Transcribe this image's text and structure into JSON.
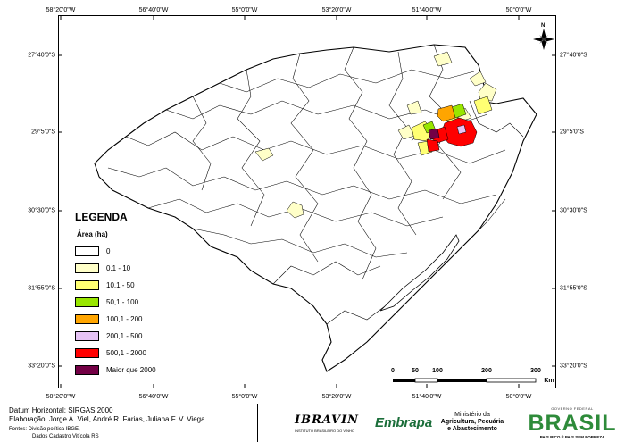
{
  "coordinates": {
    "top": [
      "58°20'0\"W",
      "56°40'0\"W",
      "55°0'0\"W",
      "53°20'0\"W",
      "51°40'0\"W",
      "50°0'0\"W"
    ],
    "bottom": [
      "58°20'0\"W",
      "56°40'0\"W",
      "55°0'0\"W",
      "53°20'0\"W",
      "51°40'0\"W",
      "50°0'0\"W"
    ],
    "left": [
      "27°40'0\"S",
      "29°5'0\"S",
      "30°30'0\"S",
      "31°55'0\"S",
      "33°20'0\"S"
    ],
    "right": [
      "27°40'0\"S",
      "29°5'0\"S",
      "30°30'0\"S",
      "31°55'0\"S",
      "33°20'0\"S"
    ]
  },
  "legend": {
    "title": "LEGENDA",
    "subtitle": "Área (ha)",
    "items": [
      {
        "label": "0",
        "color": "#ffffff"
      },
      {
        "label": "0,1 - 10",
        "color": "#ffffc8"
      },
      {
        "label": "10,1 - 50",
        "color": "#ffff73"
      },
      {
        "label": "50,1 - 100",
        "color": "#98e600"
      },
      {
        "label": "100,1 - 200",
        "color": "#ffa500"
      },
      {
        "label": "200,1 - 500",
        "color": "#e6c3f5"
      },
      {
        "label": "500,1 - 2000",
        "color": "#ff0000"
      },
      {
        "label": "Maior que 2000",
        "color": "#730045"
      }
    ]
  },
  "scalebar": {
    "labels": [
      "0",
      "50",
      "100",
      "200",
      "300"
    ],
    "unit": "Km"
  },
  "north_arrow": {
    "label": "N",
    "icon": "north-arrow-icon"
  },
  "footer": {
    "datum": "Datum Horizontal: SIRGAS 2000",
    "credits": "Elaboração: Jorge A. Viel, André R. Farias, Juliana F. V. Viega",
    "source_1": "Fontes: Divisão política IBGE,",
    "source_2": "Dados Cadastro Vitícola RS"
  },
  "logos": {
    "ibravin": "IBRAVIN",
    "ibravin_sub": "INSTITUTO BRASILEIRO DO VINHO",
    "embrapa": "Embrapa",
    "ministry_1": "Ministério da",
    "ministry_2": "Agricultura, Pecuária",
    "ministry_3": "e Abastecimento",
    "gov_top": "GOVERNO FEDERAL",
    "brasil": "BRASIL",
    "slogan": "PAÍS RICO É PAÍS SEM POBREZA"
  },
  "colors": {
    "zero": "#ffffff",
    "c1": "#ffffc8",
    "c2": "#ffff73",
    "c3": "#98e600",
    "c4": "#ffa500",
    "c5": "#e6c3f5",
    "c6": "#ff0000",
    "c7": "#730045"
  }
}
